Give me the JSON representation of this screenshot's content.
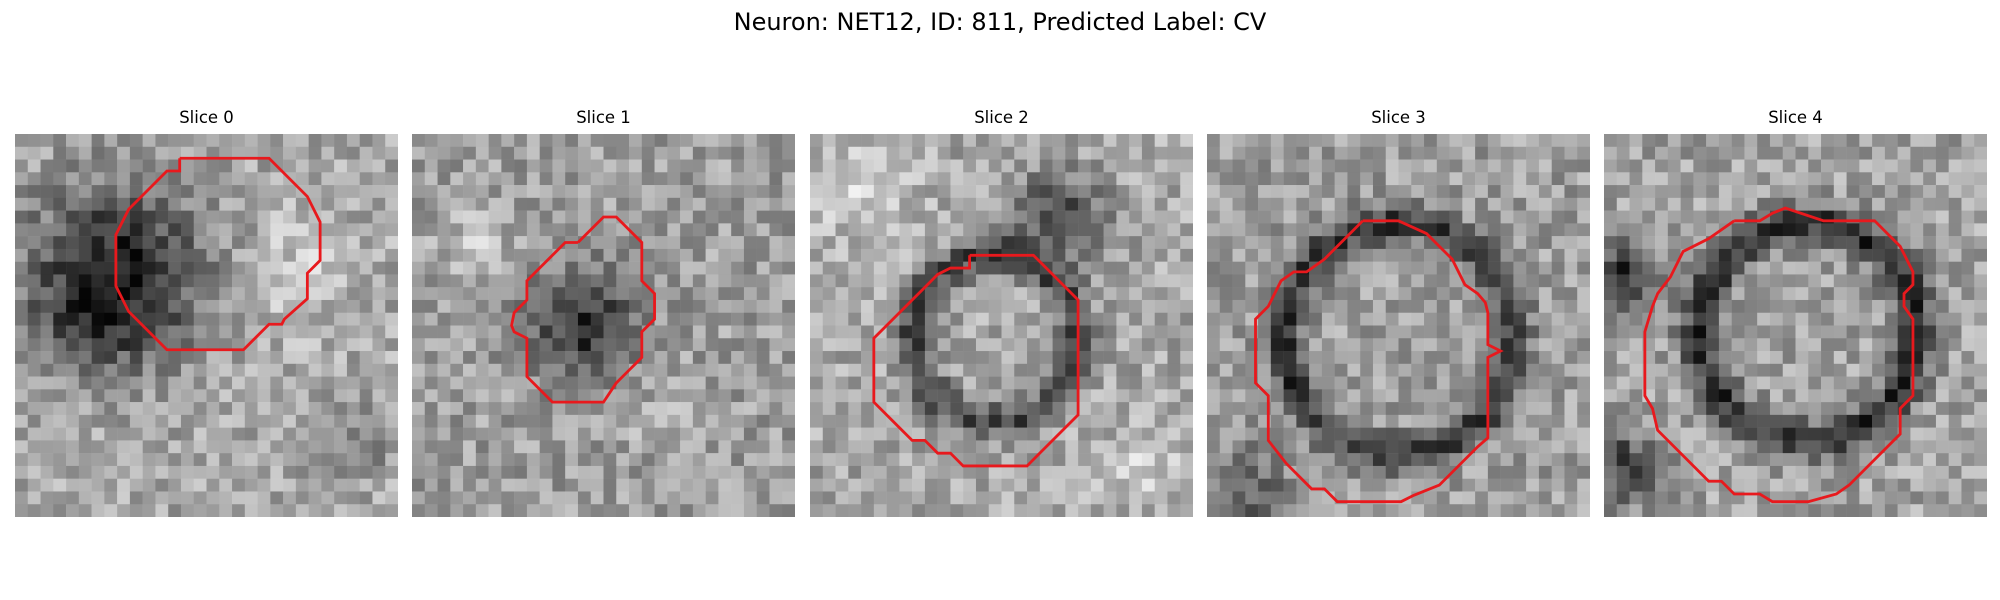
{
  "figure": {
    "title": "Neuron: NET12, ID: 811, Predicted Label: CV"
  },
  "colors": {
    "contour": "#e8191d",
    "background": "#ffffff"
  },
  "panels": [
    {
      "title": "Slice 0"
    },
    {
      "title": "Slice 1"
    },
    {
      "title": "Slice 2"
    },
    {
      "title": "Slice 3"
    },
    {
      "title": "Slice 4"
    }
  ]
}
